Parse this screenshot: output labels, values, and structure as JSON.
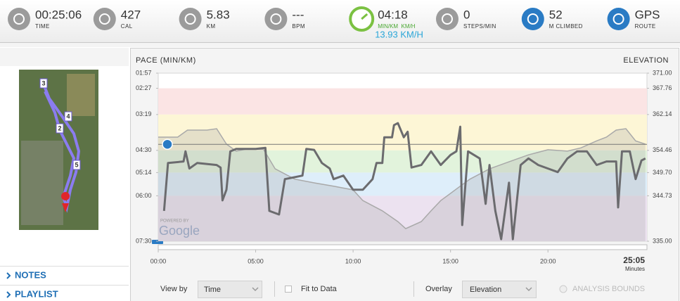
{
  "stats": [
    {
      "value": "00:25:06",
      "label": "TIME"
    },
    {
      "value": "427",
      "label": "CAL"
    },
    {
      "value": "5.83",
      "label": "KM"
    },
    {
      "value": "---",
      "label": "BPM"
    },
    {
      "value": "04:18",
      "label": "MIN/KM  KM/H",
      "sub": "13.93 KM/H"
    },
    {
      "value": "0",
      "label": "STEPS/MIN"
    },
    {
      "value": "52",
      "label": "M CLIMBED"
    },
    {
      "value": "GPS",
      "label": "ROUTE"
    }
  ],
  "sidebar": {
    "map_markers": [
      "3",
      "4",
      "2",
      "5"
    ],
    "links": [
      "NOTES",
      "PLAYLIST"
    ]
  },
  "chart_data": {
    "type": "line",
    "title": "PACE (MIN/KM)",
    "y2_title": "ELEVATION",
    "ylim": [
      450,
      117
    ],
    "yticks": [
      {
        "value": 117,
        "label": "01:57"
      },
      {
        "value": 147,
        "label": "02:27"
      },
      {
        "value": 199,
        "label": "03:19"
      },
      {
        "value": 270,
        "label": "04:30"
      },
      {
        "value": 314,
        "label": "05:14"
      },
      {
        "value": 360,
        "label": "06:00"
      },
      {
        "value": 450,
        "label": "07:30"
      }
    ],
    "y2lim": [
      335,
      371
    ],
    "y2ticks": [
      {
        "value": 371,
        "label": "371.00"
      },
      {
        "value": 367.76,
        "label": "367.76"
      },
      {
        "value": 362.14,
        "label": "362.14"
      },
      {
        "value": 354.46,
        "label": "354.46"
      },
      {
        "value": 349.7,
        "label": "349.70"
      },
      {
        "value": 344.73,
        "label": "344.73"
      },
      {
        "value": 335,
        "label": "335.00"
      }
    ],
    "xlim": [
      0,
      25.08
    ],
    "xticks": [
      {
        "value": 0,
        "label": "00:00"
      },
      {
        "value": 5,
        "label": "05:00"
      },
      {
        "value": 10,
        "label": "10:00"
      },
      {
        "value": 15,
        "label": "15:00"
      },
      {
        "value": 20,
        "label": "20:00"
      }
    ],
    "x_end_label": "25:05",
    "x_unit": "Minutes",
    "zone_colors": [
      "#fbe4e4",
      "#fdf6d6",
      "#e2f3dc",
      "#deeefa",
      "#ece2f0"
    ],
    "reference_line": 258,
    "series": [
      {
        "name": "Pace",
        "color": "#6b6b6e",
        "x": [
          0.3,
          0.5,
          1.3,
          1.4,
          1.6,
          2.0,
          3.0,
          3.2,
          3.3,
          3.5,
          3.7,
          4.0,
          5.0,
          5.5,
          5.7,
          6.2,
          6.5,
          7.4,
          7.6,
          8.0,
          8.4,
          8.8,
          9.0,
          9.5,
          10.0,
          10.5,
          11.0,
          11.2,
          11.5,
          11.6,
          12.0,
          12.1,
          12.3,
          12.6,
          12.8,
          13.0,
          13.5,
          14.0,
          14.5,
          15.0,
          15.3,
          15.5,
          15.6,
          15.9,
          16.5,
          16.8,
          17.0,
          17.3,
          17.6,
          18.0,
          18.2,
          18.6,
          19.0,
          19.5,
          20.0,
          20.5,
          21.0,
          21.5,
          22.0,
          22.5,
          23.0,
          23.5,
          23.6,
          23.8,
          24.2,
          24.5,
          24.8,
          25.0
        ],
        "values": [
          390,
          295,
          292,
          272,
          306,
          295,
          299,
          304,
          369,
          348,
          272,
          267,
          267,
          265,
          390,
          397,
          327,
          320,
          267,
          269,
          295,
          306,
          327,
          320,
          348,
          348,
          327,
          295,
          295,
          244,
          244,
          220,
          216,
          244,
          233,
          304,
          299,
          272,
          299,
          279,
          272,
          223,
          418,
          272,
          286,
          376,
          299,
          390,
          446,
          334,
          446,
          299,
          286,
          299,
          306,
          313,
          286,
          272,
          272,
          299,
          292,
          292,
          383,
          272,
          272,
          327,
          290,
          286
        ]
      },
      {
        "name": "Elevation",
        "color": "#a9a9a9",
        "axis": "y2",
        "x": [
          0,
          1.0,
          1.5,
          2.5,
          3.0,
          3.5,
          4.0,
          4.5,
          5.4,
          6.0,
          7.0,
          8.0,
          9.0,
          10.0,
          10.5,
          11.5,
          12.3,
          12.7,
          13.5,
          14.0,
          14.5,
          15.5,
          16.0,
          17.0,
          18.0,
          19.0,
          20.0,
          21.0,
          21.7,
          22.5,
          23.0,
          23.5,
          24.0,
          24.5,
          25.0
        ],
        "values": [
          357.3,
          357.3,
          358.8,
          358.8,
          359.1,
          355.8,
          354.3,
          354.7,
          354.7,
          350.5,
          348.3,
          347.5,
          346.8,
          346.0,
          343.7,
          341.5,
          339.2,
          337.7,
          339.2,
          341.5,
          343.7,
          346.8,
          348.3,
          350.5,
          352.0,
          353.5,
          354.6,
          354.3,
          355.0,
          356.5,
          357.3,
          358.8,
          359.1,
          356.5,
          355.8
        ]
      }
    ]
  },
  "controls": {
    "view_by_label": "View by",
    "view_by": "Time",
    "fit_label": "Fit to Data",
    "overlay_label": "Overlay",
    "overlay": "Elevation",
    "bounds_label": "ANALYSIS BOUNDS"
  },
  "map_credit": {
    "powered": "POWERED BY",
    "brand": "Google"
  }
}
